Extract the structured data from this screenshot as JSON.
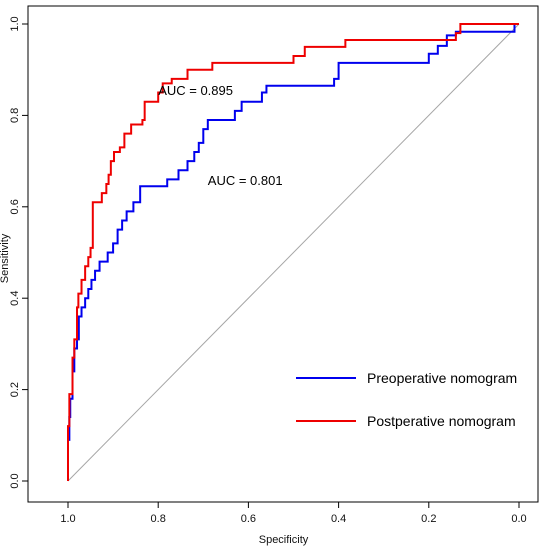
{
  "chart_data": {
    "type": "line",
    "title": "",
    "xlabel": "Specificity",
    "ylabel": "Sensitivity",
    "xlim": [
      1.0,
      0.0
    ],
    "ylim": [
      0.0,
      1.0
    ],
    "x_reversed": true,
    "x_ticks": [
      1.0,
      0.8,
      0.6,
      0.4,
      0.2,
      0.0
    ],
    "x_tick_labels": [
      "1.0",
      "0.8",
      "0.6",
      "0.4",
      "0.2",
      "0.0"
    ],
    "y_ticks": [
      0.0,
      0.2,
      0.4,
      0.6,
      0.8,
      1.0
    ],
    "y_tick_labels": [
      "0.0",
      "0.2",
      "0.4",
      "0.6",
      "0.8",
      "1.0"
    ],
    "grid": false,
    "legend_position": "bottom-right",
    "reference_line": {
      "from": [
        1.0,
        0.0
      ],
      "to": [
        0.0,
        1.0
      ],
      "color": "#a6a6a6"
    },
    "series": [
      {
        "name": "Preoperative nomogram",
        "color": "#0000ee",
        "step": true,
        "points": [
          [
            1.0,
            0.0
          ],
          [
            1.0,
            0.09
          ],
          [
            0.997,
            0.14
          ],
          [
            0.995,
            0.18
          ],
          [
            0.99,
            0.24
          ],
          [
            0.986,
            0.29
          ],
          [
            0.98,
            0.31
          ],
          [
            0.976,
            0.36
          ],
          [
            0.97,
            0.38
          ],
          [
            0.962,
            0.4
          ],
          [
            0.955,
            0.42
          ],
          [
            0.948,
            0.44
          ],
          [
            0.94,
            0.46
          ],
          [
            0.93,
            0.48
          ],
          [
            0.912,
            0.5
          ],
          [
            0.9,
            0.52
          ],
          [
            0.89,
            0.55
          ],
          [
            0.88,
            0.57
          ],
          [
            0.87,
            0.59
          ],
          [
            0.855,
            0.61
          ],
          [
            0.84,
            0.645
          ],
          [
            0.78,
            0.66
          ],
          [
            0.755,
            0.68
          ],
          [
            0.735,
            0.7
          ],
          [
            0.72,
            0.72
          ],
          [
            0.71,
            0.74
          ],
          [
            0.7,
            0.77
          ],
          [
            0.69,
            0.79
          ],
          [
            0.63,
            0.81
          ],
          [
            0.615,
            0.83
          ],
          [
            0.57,
            0.85
          ],
          [
            0.56,
            0.865
          ],
          [
            0.41,
            0.88
          ],
          [
            0.4,
            0.915
          ],
          [
            0.2,
            0.935
          ],
          [
            0.18,
            0.952
          ],
          [
            0.16,
            0.975
          ],
          [
            0.14,
            0.983
          ],
          [
            0.01,
            1.0
          ],
          [
            0.0,
            1.0
          ]
        ]
      },
      {
        "name": "Postperative nomogram",
        "color": "#ee0000",
        "step": true,
        "points": [
          [
            1.0,
            0.0
          ],
          [
            1.0,
            0.12
          ],
          [
            0.997,
            0.19
          ],
          [
            0.99,
            0.27
          ],
          [
            0.986,
            0.31
          ],
          [
            0.98,
            0.38
          ],
          [
            0.977,
            0.41
          ],
          [
            0.97,
            0.44
          ],
          [
            0.962,
            0.47
          ],
          [
            0.955,
            0.49
          ],
          [
            0.95,
            0.51
          ],
          [
            0.945,
            0.61
          ],
          [
            0.925,
            0.63
          ],
          [
            0.915,
            0.65
          ],
          [
            0.91,
            0.67
          ],
          [
            0.905,
            0.7
          ],
          [
            0.898,
            0.72
          ],
          [
            0.885,
            0.73
          ],
          [
            0.875,
            0.76
          ],
          [
            0.86,
            0.78
          ],
          [
            0.835,
            0.79
          ],
          [
            0.83,
            0.83
          ],
          [
            0.8,
            0.85
          ],
          [
            0.79,
            0.87
          ],
          [
            0.77,
            0.88
          ],
          [
            0.735,
            0.9
          ],
          [
            0.68,
            0.915
          ],
          [
            0.5,
            0.93
          ],
          [
            0.475,
            0.95
          ],
          [
            0.385,
            0.965
          ],
          [
            0.14,
            0.98
          ],
          [
            0.13,
            1.0
          ],
          [
            0.0,
            1.0
          ]
        ]
      }
    ],
    "annotations": [
      {
        "text": "AUC = 0.895",
        "x": 0.8,
        "y": 0.845
      },
      {
        "text": "AUC = 0.801",
        "x": 0.69,
        "y": 0.648
      }
    ]
  }
}
